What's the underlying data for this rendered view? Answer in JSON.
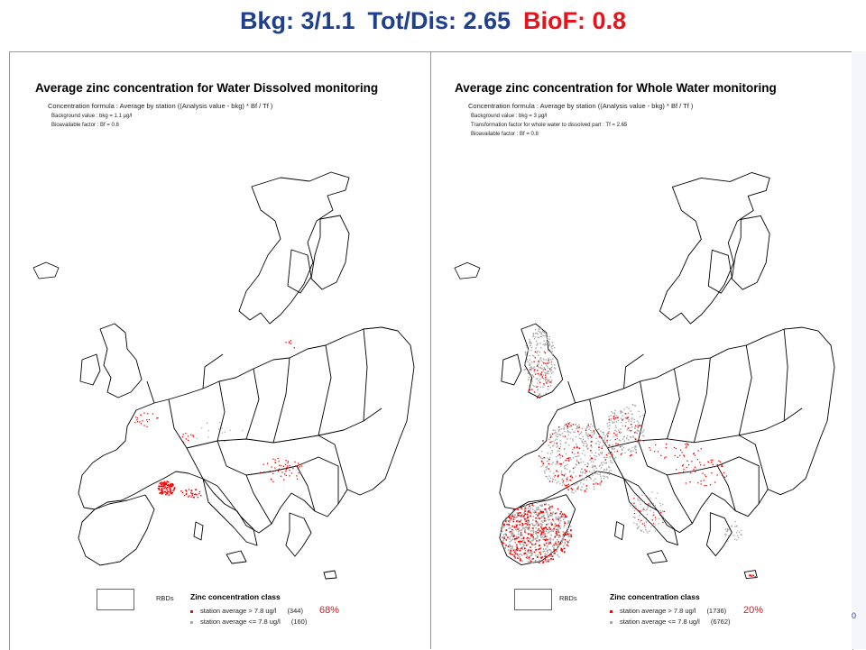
{
  "header": {
    "bkg_label": "Bkg: 3/1.1",
    "totdis_label": "Tot/Dis: 2.65",
    "biof_label": "BioF: 0.8"
  },
  "left_map": {
    "title": "Average zinc concentration for Water Dissolved monitoring",
    "formula": "Concentration formula : Average by station  ((Analysis value - bkg) * Bf / Tf )",
    "params": [
      "Background value : bkg = 1.1 µg/l",
      "Bioavailable factor : Bf = 0.8"
    ],
    "legend": {
      "rbd_label": "RBDs",
      "class_title": "Zinc concentration class",
      "above_label": "station average > 7.8 ug/l",
      "above_count": "(344)",
      "below_label": "station average <= 7.8 ug/l",
      "below_count": "(160)"
    },
    "exceed_share": "68%"
  },
  "right_map": {
    "title": "Average zinc concentration for Whole Water monitoring",
    "formula": "Concentration formula : Average by station  ((Analysis value - bkg) * Bf / Tf )",
    "params": [
      "Background value : bkg = 3 µg/l",
      "Transformation factor for whole water to dissolved part : Tf = 2.65",
      "Bioavailable factor : Bf = 0.8"
    ],
    "legend": {
      "rbd_label": "RBDs",
      "class_title": "Zinc concentration class",
      "above_label": "station average > 7.8 ug/l",
      "above_count": "(1736)",
      "below_label": "station average <= 7.8 ug/l",
      "below_count": "(6762)"
    },
    "exceed_share": "20%"
  },
  "corner_mark": "0",
  "colors": {
    "title_blue": "#1f3f8f",
    "title_red": "#e8141c",
    "above_threshold": "#ff0000",
    "below_threshold": "#a8a8a8",
    "outline": "#000000"
  },
  "icons": [
    "map-icon"
  ]
}
